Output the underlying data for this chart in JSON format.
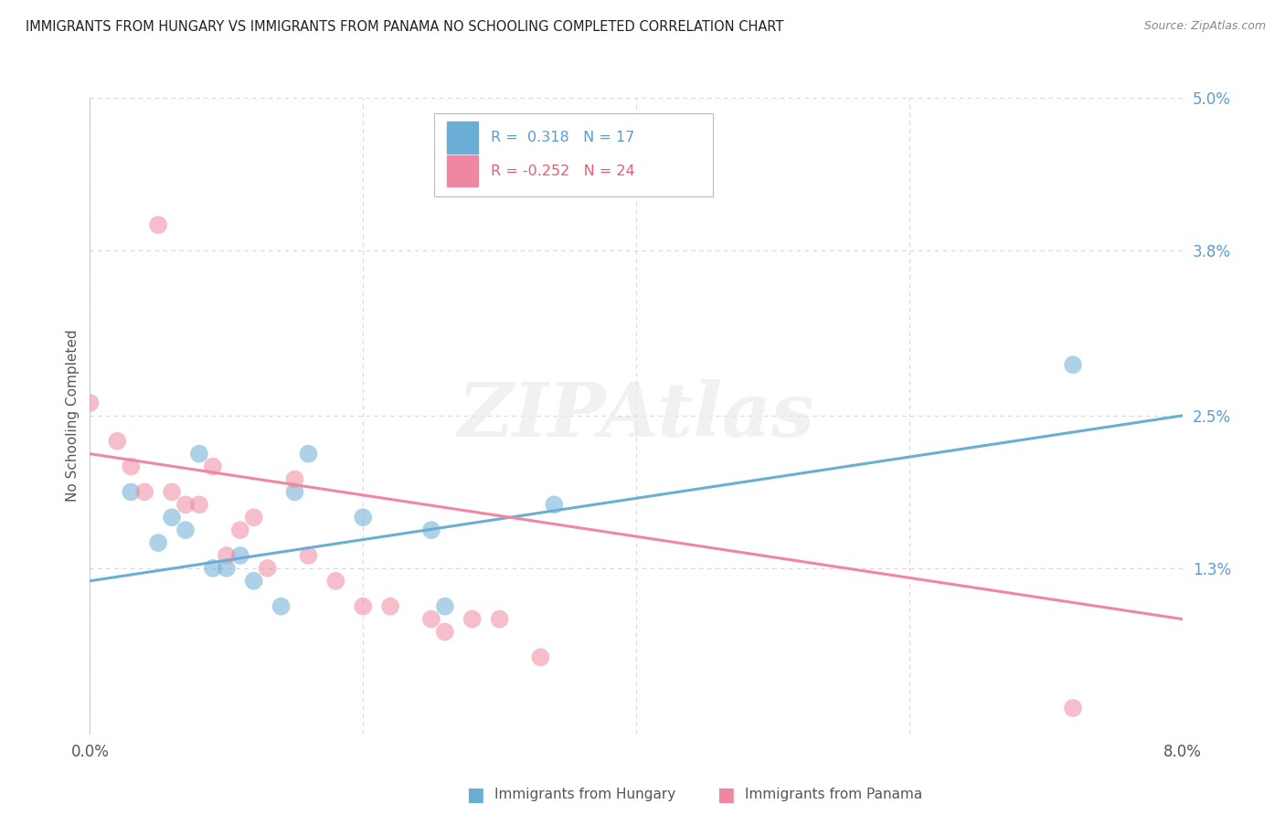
{
  "title": "IMMIGRANTS FROM HUNGARY VS IMMIGRANTS FROM PANAMA NO SCHOOLING COMPLETED CORRELATION CHART",
  "source": "Source: ZipAtlas.com",
  "ylabel": "No Schooling Completed",
  "xlim": [
    0.0,
    0.08
  ],
  "ylim": [
    0.0,
    0.05
  ],
  "xticks": [
    0.0,
    0.02,
    0.04,
    0.06,
    0.08
  ],
  "xticklabels": [
    "0.0%",
    "",
    "",
    "",
    "8.0%"
  ],
  "yticks": [
    0.0,
    0.013,
    0.025,
    0.038,
    0.05
  ],
  "yticklabels": [
    "",
    "1.3%",
    "2.5%",
    "3.8%",
    "5.0%"
  ],
  "hungary_color": "#6aaed6",
  "panama_color": "#f087a0",
  "hungary_r": "0.318",
  "hungary_n": 17,
  "panama_r": "-0.252",
  "panama_n": 24,
  "hungary_scatter_x": [
    0.003,
    0.005,
    0.006,
    0.007,
    0.008,
    0.009,
    0.01,
    0.011,
    0.012,
    0.014,
    0.015,
    0.016,
    0.02,
    0.025,
    0.026,
    0.034,
    0.072
  ],
  "hungary_scatter_y": [
    0.019,
    0.015,
    0.017,
    0.016,
    0.022,
    0.013,
    0.013,
    0.014,
    0.012,
    0.01,
    0.019,
    0.022,
    0.017,
    0.016,
    0.01,
    0.018,
    0.029
  ],
  "panama_scatter_x": [
    0.0,
    0.002,
    0.003,
    0.004,
    0.005,
    0.006,
    0.007,
    0.008,
    0.009,
    0.01,
    0.011,
    0.012,
    0.013,
    0.015,
    0.016,
    0.018,
    0.02,
    0.022,
    0.025,
    0.026,
    0.028,
    0.03,
    0.033,
    0.072
  ],
  "panama_scatter_y": [
    0.026,
    0.023,
    0.021,
    0.019,
    0.04,
    0.019,
    0.018,
    0.018,
    0.021,
    0.014,
    0.016,
    0.017,
    0.013,
    0.02,
    0.014,
    0.012,
    0.01,
    0.01,
    0.009,
    0.008,
    0.009,
    0.009,
    0.006,
    0.002
  ],
  "hungary_line_x": [
    0.0,
    0.08
  ],
  "hungary_line_y": [
    0.012,
    0.025
  ],
  "panama_line_x": [
    0.0,
    0.08
  ],
  "panama_line_y": [
    0.022,
    0.009
  ],
  "watermark": "ZIPAtlas",
  "background_color": "#ffffff",
  "grid_color": "#d8d8d8",
  "legend_title_hungary": "R =  0.318   N = 17",
  "legend_title_panama": "R = -0.252   N = 24",
  "bottom_label_hungary": "Immigrants from Hungary",
  "bottom_label_panama": "Immigrants from Panama"
}
